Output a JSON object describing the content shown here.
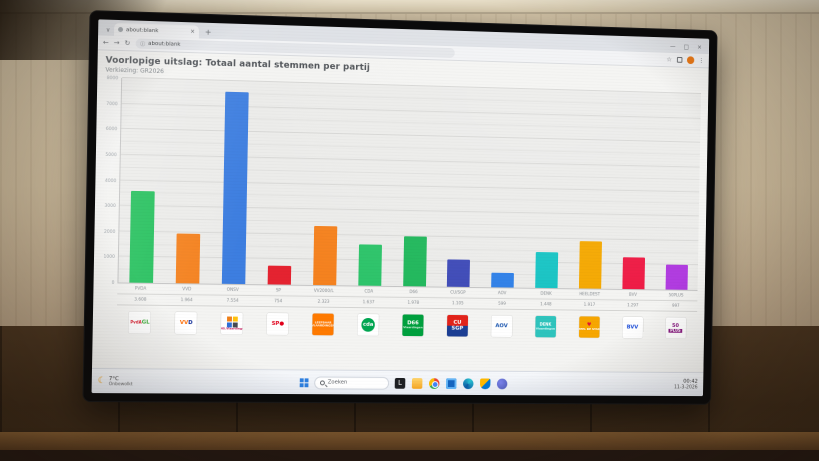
{
  "browser": {
    "tab_title": "about:blank",
    "url": "about:blank"
  },
  "icons": {
    "dropdown": "∨",
    "tab_close": "×",
    "new_tab": "+",
    "minimize": "—",
    "maximize": "□",
    "close": "×",
    "back": "←",
    "forward": "→",
    "reload": "↻",
    "info": "ⓘ",
    "star": "☆",
    "menu": "⋮",
    "moon": "☾"
  },
  "page": {
    "title": "Voorlopige uitslag: Totaal aantal stemmen per partij",
    "subtitle": "Verkiezing: GR2026"
  },
  "chart_data": {
    "type": "bar",
    "title": "Voorlopige uitslag: Totaal aantal stemmen per partij",
    "xlabel": "",
    "ylabel": "",
    "ylim": [
      0,
      8000
    ],
    "yticks": [
      0,
      1000,
      2000,
      3000,
      4000,
      5000,
      6000,
      7000,
      8000
    ],
    "grid": true,
    "legend": false,
    "categories": [
      "PVDA",
      "VVD",
      "ONSV",
      "SP",
      "VV2000/L",
      "CDA",
      "D66",
      "CU/SGP",
      "AOV",
      "DENK",
      "HEELDEST",
      "BVV",
      "50PLUS"
    ],
    "values": [
      3608,
      1964,
      7554,
      754,
      2323,
      1637,
      1978,
      1105,
      599,
      1448,
      1917,
      1297,
      997
    ],
    "value_labels": [
      "3.608",
      "1.964",
      "7.554",
      "754",
      "2.323",
      "1.637",
      "1.978",
      "1.105",
      "599",
      "1.448",
      "1.917",
      "1.297",
      "997"
    ],
    "bar_colors": [
      "#26c15e",
      "#f5821f",
      "#3d7ee0",
      "#e52330",
      "#f5821f",
      "#2dc46a",
      "#21b85c",
      "#3f4bb8",
      "#2f80e8",
      "#17c4c4",
      "#f5a800",
      "#ef1a44",
      "#b03ae0"
    ]
  },
  "party_logos": [
    {
      "bg": "#ffffff",
      "layout": "row",
      "parts": [
        {
          "t": "PvdA",
          "c": "#d7182a"
        },
        {
          "t": "GL",
          "c": "#39a935"
        }
      ]
    },
    {
      "bg": "#ffffff",
      "layout": "row",
      "parts": [
        {
          "t": "VV",
          "c": "#ff6a00"
        },
        {
          "t": "D",
          "c": "#0a2896"
        }
      ]
    },
    {
      "bg": "#ffffff",
      "type": "grid",
      "grid": [
        "#f08019",
        "#ffc20e",
        "#2e6fd8",
        "#444a52"
      ],
      "parts": [
        {
          "t": "ONS.Vlaardingen",
          "c": "#c2185b"
        }
      ]
    },
    {
      "bg": "#ffffff",
      "layout": "row",
      "parts": [
        {
          "t": "SP",
          "c": "#e2001a"
        },
        {
          "t": "●",
          "c": "#e2001a"
        }
      ]
    },
    {
      "bg": "#ff7a00",
      "layout": "col",
      "parts": [
        {
          "t": "LEEFBAAR",
          "c": "#ffffff"
        },
        {
          "t": "VLAARDINGEN",
          "c": "#ffffff"
        }
      ]
    },
    {
      "bg": "#ffffff",
      "type": "circle",
      "circle": "#00a651",
      "parts": [
        {
          "t": "cda",
          "c": "#ffffff"
        }
      ]
    },
    {
      "bg": "#00a03e",
      "layout": "col",
      "parts": [
        {
          "t": "D66",
          "c": "#ffffff"
        },
        {
          "t": "Vlaardingen",
          "c": "#d9f2e3"
        }
      ]
    },
    {
      "bg": "#ffffff",
      "type": "split",
      "split": [
        "#e2231a",
        "#1c3f94"
      ],
      "parts": [
        {
          "t": "CU",
          "c": "#ffffff"
        },
        {
          "t": "SGP",
          "c": "#ffffff"
        }
      ]
    },
    {
      "bg": "#ffffff",
      "layout": "col",
      "parts": [
        {
          "t": "AOV",
          "c": "#1c57b0"
        }
      ]
    },
    {
      "bg": "#2ec4bd",
      "layout": "col",
      "parts": [
        {
          "t": "DENK",
          "c": "#ffffff"
        },
        {
          "t": "Vlaardingen",
          "c": "#e6fffd"
        }
      ]
    },
    {
      "bg": "#f7a600",
      "layout": "col",
      "parts": [
        {
          "t": "♥",
          "c": "#e01336"
        },
        {
          "t": "HEEL DE STAD",
          "c": "#ffffff"
        }
      ]
    },
    {
      "bg": "#ffffff",
      "layout": "col",
      "parts": [
        {
          "t": "BVV",
          "c": "#1d4ed8"
        }
      ]
    },
    {
      "bg": "#ffffff",
      "layout": "col",
      "parts": [
        {
          "t": "50",
          "c": "#8a1e82"
        },
        {
          "t": "PLUS",
          "c": "#ffffff",
          "band": "#8a1e82"
        }
      ]
    }
  ],
  "taskbar": {
    "weather": {
      "temp": "7°C",
      "condition": "Onbewolkt"
    },
    "search_placeholder": "Zoeken",
    "clock": {
      "time": "00:42",
      "date": "11-3-2026"
    }
  }
}
